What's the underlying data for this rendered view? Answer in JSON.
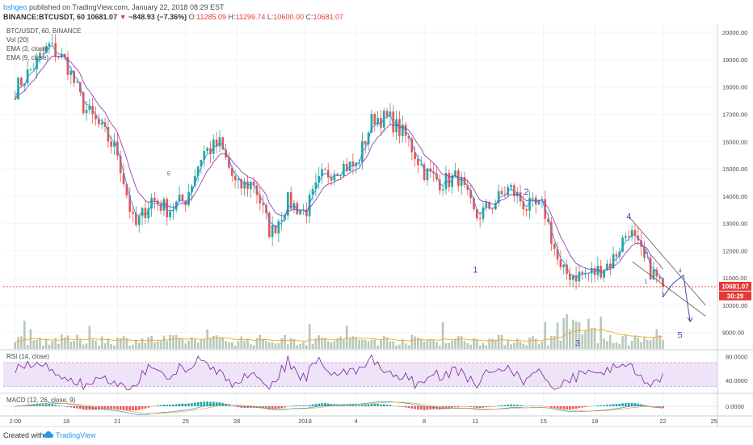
{
  "header": {
    "author": "bshgeo",
    "published_text": "published on TradingView.com, January 22, 2018 08:29 EST",
    "symbol": "BINANCE:BTCUSDT, 60",
    "price": "10681.07",
    "change_text": "−848.93 (−7.36%)",
    "o_label": "O:",
    "o_value": "11285.09",
    "h_label": "H:",
    "h_value": "11299.74",
    "l_label": "L:",
    "l_value": "10600.00",
    "c_label": "C:",
    "c_value": "10681.07"
  },
  "legend": {
    "main": "BTC/USDT, 60, BINANCE",
    "vol": "Vol (20)",
    "ema3": "EMA (3, close)",
    "ema9": "EMA (9, close)",
    "rsi": "RSI (14, close)",
    "macd": "MACD (12, 26, close, 9)"
  },
  "price_badge": "10681.07",
  "countdown_badge": "30:29",
  "footer": {
    "created_with": "Created with",
    "brand": "TradingView"
  },
  "colors": {
    "up": "#26a69a",
    "down": "#ef5350",
    "ema3": "#2196f3",
    "ema9": "#8e44ad",
    "volume": "#b7c9b9",
    "vol_ma": "#f5a623",
    "rsi": "#7b1fa2",
    "rsi_band": "#efe3f7",
    "annotation": "#3f51b5",
    "price_line": "#e53935"
  },
  "chart_data": [
    {
      "type": "line",
      "title": "BTC/USDT, 60, BINANCE",
      "y_axis_ticks": [
        20000,
        19000,
        18000,
        17000,
        16000,
        15000,
        14000,
        13000,
        12000,
        11000,
        10000,
        9000
      ],
      "ylim": [
        8400,
        20300
      ],
      "x_axis_labels": [
        "2:00",
        "18",
        "21",
        "25",
        "28",
        "2018",
        "4",
        "8",
        "11",
        "15",
        "18",
        "22",
        "25"
      ],
      "x_axis_dates": [
        "Dec 15",
        "Dec 18",
        "Dec 21",
        "Dec 25",
        "Dec 28",
        "Jan 1",
        "Jan 4",
        "Jan 8",
        "Jan 11",
        "Jan 15",
        "Jan 18",
        "Jan 22",
        "Jan 25"
      ],
      "approx_close_path": [
        {
          "date": "Dec 15",
          "price": 17900
        },
        {
          "date": "Dec 16",
          "price": 18700
        },
        {
          "date": "Dec 17",
          "price": 19500
        },
        {
          "date": "Dec 18",
          "price": 18900
        },
        {
          "date": "Dec 19",
          "price": 17300
        },
        {
          "date": "Dec 20",
          "price": 16500
        },
        {
          "date": "Dec 21",
          "price": 15600
        },
        {
          "date": "Dec 22",
          "price": 12800
        },
        {
          "date": "Dec 23",
          "price": 13900
        },
        {
          "date": "Dec 24",
          "price": 13500
        },
        {
          "date": "Dec 25",
          "price": 13900
        },
        {
          "date": "Dec 26",
          "price": 15600
        },
        {
          "date": "Dec 27",
          "price": 15900
        },
        {
          "date": "Dec 28",
          "price": 14300
        },
        {
          "date": "Dec 29",
          "price": 14500
        },
        {
          "date": "Dec 30",
          "price": 12600
        },
        {
          "date": "Dec 31",
          "price": 13800
        },
        {
          "date": "Jan 1",
          "price": 13400
        },
        {
          "date": "Jan 2",
          "price": 14700
        },
        {
          "date": "Jan 3",
          "price": 15100
        },
        {
          "date": "Jan 4",
          "price": 15100
        },
        {
          "date": "Jan 5",
          "price": 16900
        },
        {
          "date": "Jan 6",
          "price": 16800
        },
        {
          "date": "Jan 7",
          "price": 16100
        },
        {
          "date": "Jan 8",
          "price": 14900
        },
        {
          "date": "Jan 9",
          "price": 14500
        },
        {
          "date": "Jan 10",
          "price": 14700
        },
        {
          "date": "Jan 11",
          "price": 13200
        },
        {
          "date": "Jan 12",
          "price": 13700
        },
        {
          "date": "Jan 13",
          "price": 14300
        },
        {
          "date": "Jan 14",
          "price": 13600
        },
        {
          "date": "Jan 15",
          "price": 13600
        },
        {
          "date": "Jan 16",
          "price": 11200
        },
        {
          "date": "Jan 17",
          "price": 11100
        },
        {
          "date": "Jan 18",
          "price": 11200
        },
        {
          "date": "Jan 19",
          "price": 11600
        },
        {
          "date": "Jan 20",
          "price": 12800
        },
        {
          "date": "Jan 21",
          "price": 11500
        },
        {
          "date": "Jan 22",
          "price": 10681.07
        }
      ],
      "last_price": 10681.07,
      "annotations": [
        {
          "label": "5",
          "date": "Dec 24",
          "price": 14750
        },
        {
          "label": "1",
          "date": "Jan 11",
          "price": 11200
        },
        {
          "label": "2",
          "date": "Jan 14",
          "price": 14050
        },
        {
          "label": "3",
          "date": "Jan 17",
          "price": 8500
        },
        {
          "label": "4",
          "date": "Jan 20",
          "price": 13150
        },
        {
          "label": "1",
          "date": "Jan 21",
          "price": 10800
        },
        {
          "label": "2",
          "date": "Jan 21",
          "price": 11900
        },
        {
          "label": "3",
          "date": "Jan 22",
          "price": 10300
        },
        {
          "label": "4",
          "date": "Jan 23",
          "price": 11200
        },
        {
          "label": "5",
          "date": "Jan 23",
          "price": 8800
        }
      ],
      "projection_path": [
        {
          "date": "Jan 22",
          "price": 10300
        },
        {
          "date": "Jan 22.6",
          "price": 10800
        },
        {
          "date": "Jan 23.2",
          "price": 11100
        },
        {
          "date": "Jan 23.6",
          "price": 9400
        }
      ],
      "channel_lines": [
        {
          "from": {
            "date": "Jan 20",
            "price": 13250
          },
          "to": {
            "date": "Jan 24.5",
            "price": 10000
          }
        },
        {
          "from": {
            "date": "Jan 20.2",
            "price": 11600
          },
          "to": {
            "date": "Jan 24.5",
            "price": 9600
          }
        }
      ]
    },
    {
      "type": "line",
      "title": "RSI (14, close)",
      "y_axis_ticks": [
        80.0,
        40.0
      ],
      "ylim": [
        20,
        90
      ],
      "band": [
        30,
        70
      ]
    },
    {
      "type": "line",
      "title": "MACD (12, 26, close, 9)",
      "y_axis_ticks": [
        0.0
      ]
    }
  ]
}
